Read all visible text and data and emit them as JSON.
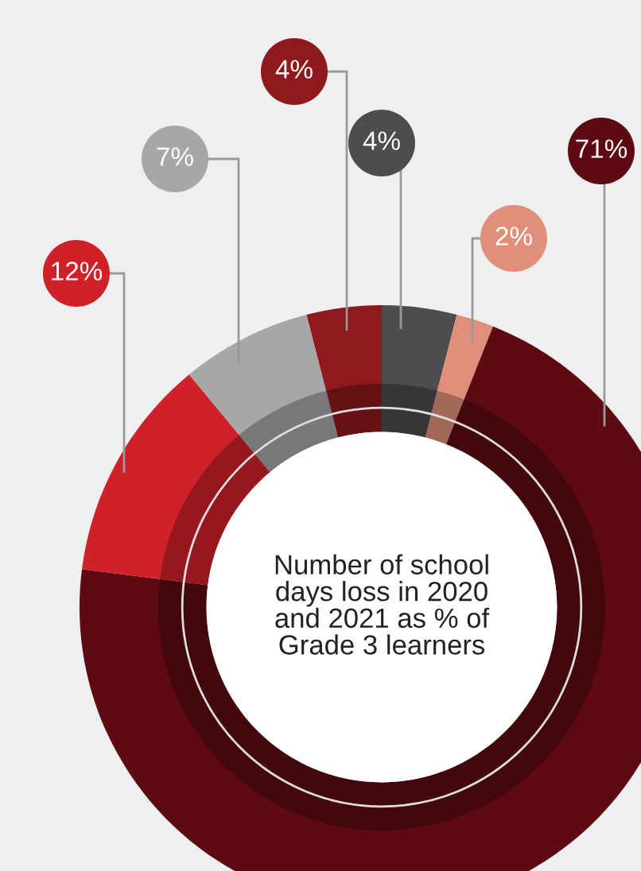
{
  "chart_data": {
    "type": "donut",
    "title": "Number of school\ndays loss in 2020\nand 2021 as % of\nGrade 3 learners",
    "categories": [
      null,
      null,
      null,
      null,
      null,
      null
    ],
    "values": [
      4,
      2,
      71,
      12,
      7,
      4
    ],
    "value_labels": [
      "4%",
      "2%",
      "71%",
      "12%",
      "7%",
      "4%"
    ],
    "colors": [
      "#4d4d4f",
      "#e0907a",
      "#5e0a12",
      "#d0202a",
      "#a7a7a9",
      "#8e1a1e"
    ],
    "legend": false
  }
}
